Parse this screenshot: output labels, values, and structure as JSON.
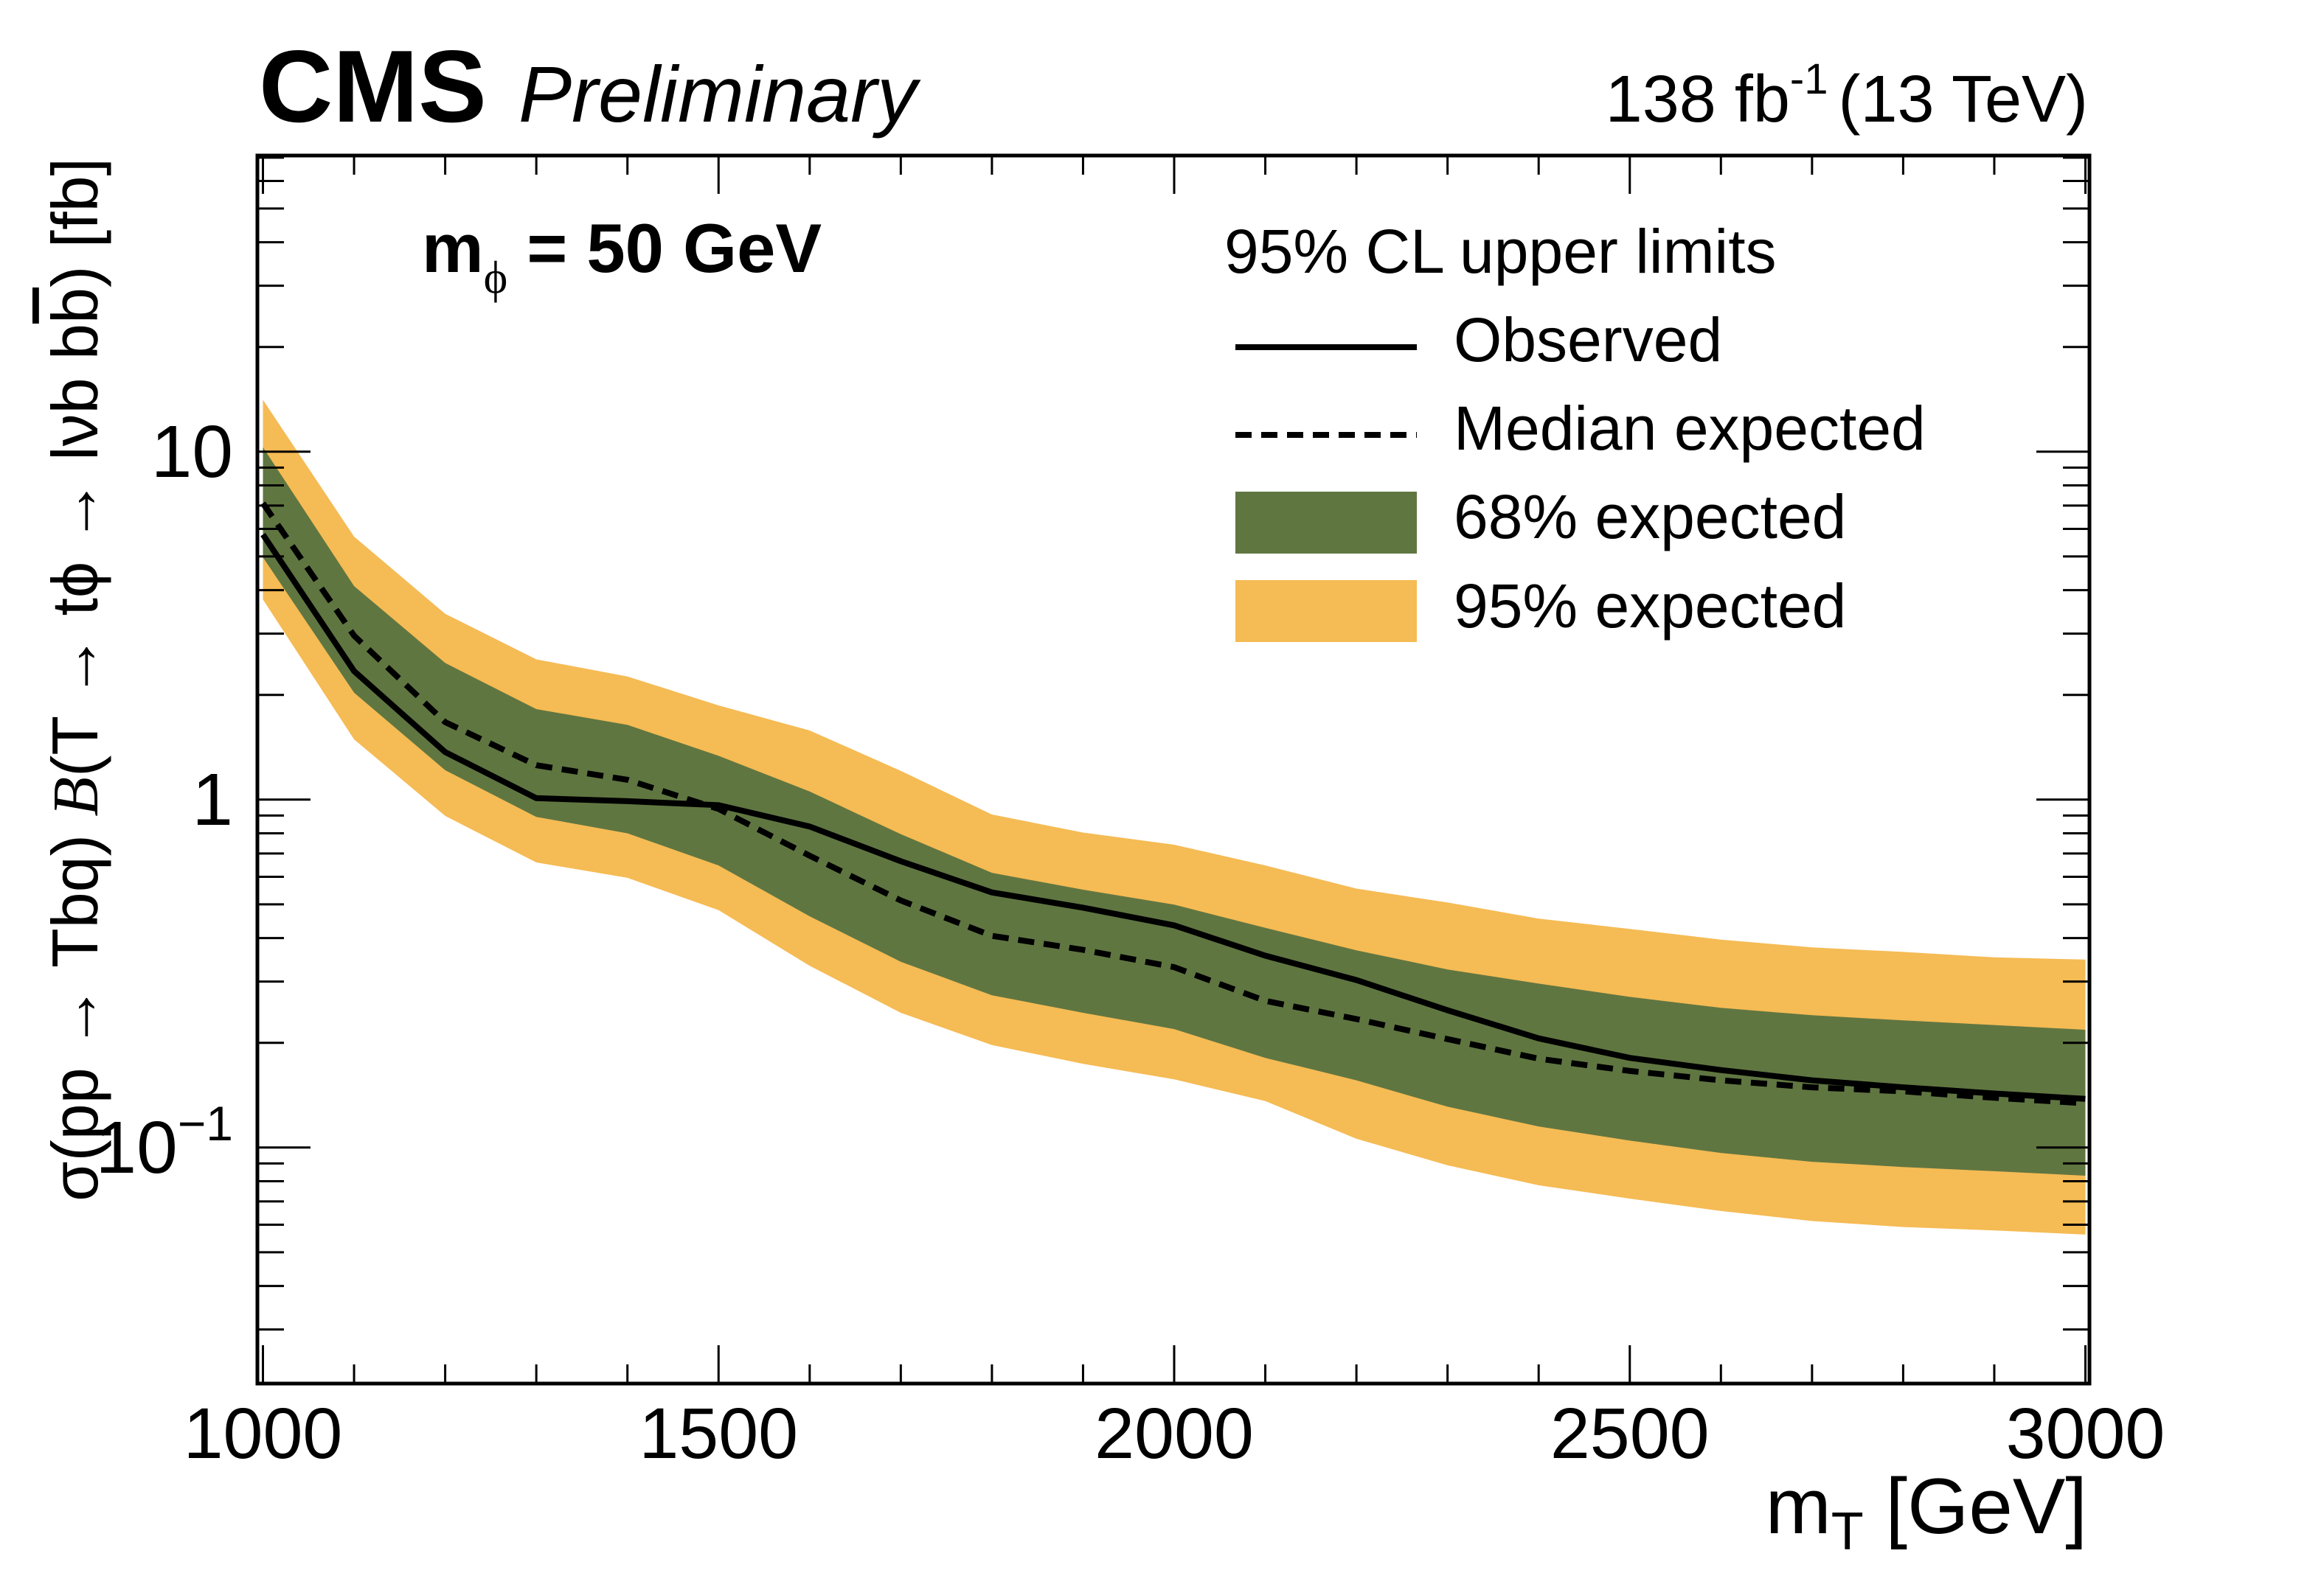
{
  "header": {
    "experiment": "CMS",
    "status": "Preliminary",
    "lumi_value": "138 fb",
    "lumi_exponent": "-1",
    "energy": "(13 TeV)"
  },
  "annotation": {
    "mass_label": "m",
    "mass_subscript": "ϕ",
    "mass_value": " = 50 GeV"
  },
  "legend": {
    "title": "95% CL upper limits",
    "entries": [
      {
        "label": "Observed",
        "style": "solid-line"
      },
      {
        "label": "Median expected",
        "style": "dashed-line"
      },
      {
        "label": "68% expected",
        "style": "band"
      },
      {
        "label": "95% expected",
        "style": "band"
      }
    ]
  },
  "colors": {
    "band68": "#607641",
    "band95": "#F5BB54",
    "line": "#000000"
  },
  "chart_data": {
    "type": "line",
    "title": "",
    "xlabel": "m_T [GeV]",
    "xlabel_main": "m",
    "xlabel_sub": "T",
    "xlabel_unit": " [GeV]",
    "ylabel": "σ(pp → Tbq) 𝓑(T → tϕ → lνb  bb̄) [fb]",
    "ylabel_parts": {
      "a": "σ(pp → Tbq) ",
      "b": "B",
      "c": "(T → tϕ → lνb  b",
      "bbar": "b",
      "d": ") [fb]"
    },
    "xlim": [
      1000,
      3000
    ],
    "ylim": [
      0.021,
      70
    ],
    "yscale": "log",
    "grid": false,
    "legend_position": "top-right",
    "x_ticks": [
      1000,
      1500,
      2000,
      2500,
      3000
    ],
    "x_tick_labels": [
      "1000",
      "1500",
      "2000",
      "2500",
      "3000"
    ],
    "y_ticks": [
      {
        "value": 10,
        "base": "10",
        "exp": ""
      },
      {
        "value": 1,
        "base": "1",
        "exp": ""
      },
      {
        "value": 0.1,
        "base": "10",
        "exp": "−1"
      }
    ],
    "x": [
      1000,
      1100,
      1200,
      1300,
      1400,
      1500,
      1600,
      1700,
      1800,
      1900,
      2000,
      2100,
      2200,
      2300,
      2400,
      2500,
      2600,
      2700,
      2800,
      2900,
      3000
    ],
    "series": [
      {
        "name": "Observed",
        "style": "solid",
        "values": [
          5.78,
          2.34,
          1.37,
          1.01,
          0.99,
          0.964,
          0.837,
          0.665,
          0.541,
          0.489,
          0.435,
          0.356,
          0.303,
          0.248,
          0.206,
          0.181,
          0.167,
          0.156,
          0.149,
          0.143,
          0.138
        ]
      },
      {
        "name": "Median expected",
        "style": "dashed",
        "values": [
          7.11,
          2.96,
          1.67,
          1.256,
          1.14,
          0.94,
          0.69,
          0.513,
          0.406,
          0.37,
          0.33,
          0.264,
          0.234,
          0.205,
          0.18,
          0.166,
          0.156,
          0.149,
          0.145,
          0.139,
          0.134
        ]
      }
    ],
    "bands": [
      {
        "name": "95% expected",
        "upper": [
          14.1,
          5.7,
          3.42,
          2.53,
          2.26,
          1.865,
          1.58,
          1.21,
          0.906,
          0.804,
          0.742,
          0.647,
          0.555,
          0.506,
          0.455,
          0.425,
          0.396,
          0.376,
          0.365,
          0.352,
          0.347
        ],
        "lower": [
          3.76,
          1.49,
          0.898,
          0.66,
          0.596,
          0.481,
          0.333,
          0.244,
          0.197,
          0.174,
          0.157,
          0.136,
          0.106,
          0.0889,
          0.0779,
          0.0713,
          0.0657,
          0.0615,
          0.0591,
          0.0578,
          0.0562
        ]
      },
      {
        "name": "68% expected",
        "upper": [
          10.3,
          4.11,
          2.47,
          1.82,
          1.64,
          1.336,
          1.055,
          0.796,
          0.616,
          0.551,
          0.499,
          0.428,
          0.369,
          0.325,
          0.296,
          0.271,
          0.252,
          0.24,
          0.232,
          0.225,
          0.218
        ],
        "lower": [
          4.97,
          2.03,
          1.215,
          0.892,
          0.8,
          0.647,
          0.462,
          0.342,
          0.274,
          0.244,
          0.219,
          0.181,
          0.156,
          0.131,
          0.115,
          0.1047,
          0.0965,
          0.091,
          0.0879,
          0.0855,
          0.083
        ]
      }
    ]
  }
}
